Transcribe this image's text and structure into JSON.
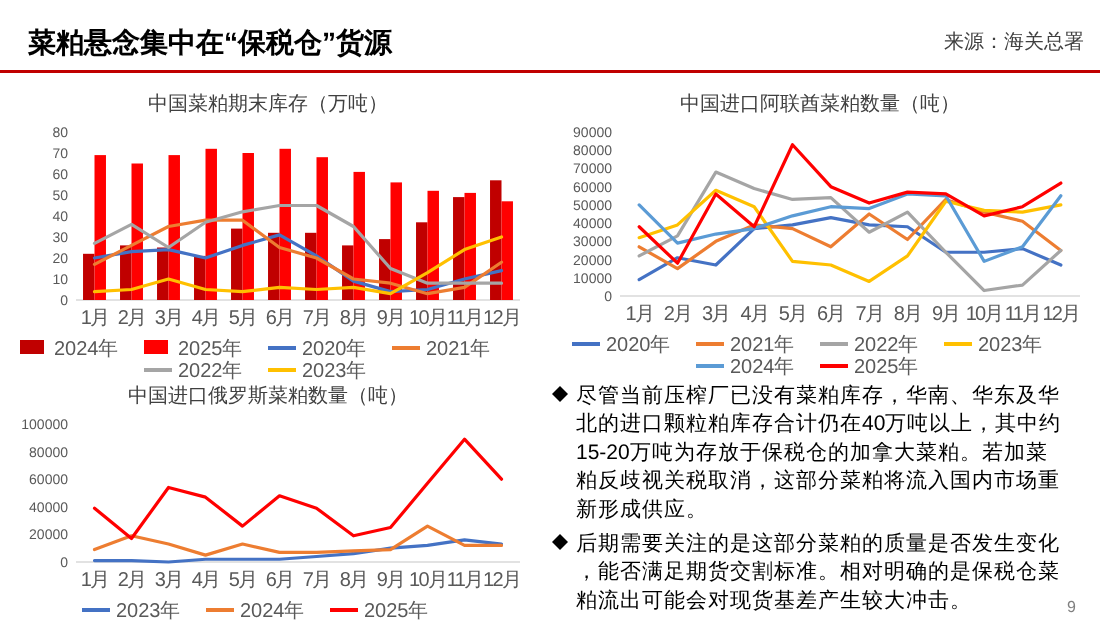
{
  "chart_data": [
    {
      "type": "bar",
      "title": "中国菜粕期末库存（万吨）",
      "categories": [
        "1月",
        "2月",
        "3月",
        "4月",
        "5月",
        "6月",
        "7月",
        "8月",
        "9月",
        "10月",
        "11月",
        "12月"
      ],
      "ylim": [
        0,
        80
      ],
      "yticks": [
        0,
        10,
        20,
        30,
        40,
        50,
        60,
        70,
        80
      ],
      "legend": "bottom",
      "series": [
        {
          "name": "2024年",
          "color": "#c00000",
          "values": [
            22,
            26,
            25,
            21,
            34,
            32,
            32,
            26,
            29,
            37,
            49,
            57
          ]
        },
        {
          "name": "2025年",
          "color": "#ff0000",
          "values": [
            69,
            65,
            69,
            72,
            70,
            72,
            68,
            61,
            56,
            52,
            51,
            47
          ]
        },
        {
          "name": "2020年",
          "type": "line",
          "color": "#4472c4",
          "values": [
            20,
            23,
            24,
            20,
            26,
            31,
            21,
            9,
            4,
            5,
            10,
            14
          ]
        },
        {
          "name": "2021年",
          "type": "line",
          "color": "#ed7d31",
          "values": [
            17,
            26,
            35,
            38,
            38,
            25,
            20,
            10,
            8,
            3,
            6,
            18
          ]
        },
        {
          "name": "2022年",
          "type": "line",
          "color": "#a5a5a5",
          "values": [
            27,
            36,
            25,
            37,
            42,
            45,
            45,
            35,
            15,
            8,
            8,
            8
          ]
        },
        {
          "name": "2023年",
          "type": "line",
          "color": "#ffc000",
          "values": [
            4,
            5,
            10,
            5,
            4,
            6,
            5,
            6,
            3,
            13,
            24,
            30
          ]
        }
      ]
    },
    {
      "type": "line",
      "title": "中国进口阿联酋菜粕数量（吨）",
      "categories": [
        "1月",
        "2月",
        "3月",
        "4月",
        "5月",
        "6月",
        "7月",
        "8月",
        "9月",
        "10月",
        "11月",
        "12月"
      ],
      "ylim": [
        0,
        90000
      ],
      "yticks": [
        0,
        10000,
        20000,
        30000,
        40000,
        50000,
        60000,
        70000,
        80000,
        90000
      ],
      "legend": "bottom",
      "series": [
        {
          "name": "2020年",
          "color": "#4472c4",
          "values": [
            9000,
            21000,
            17000,
            37000,
            39000,
            43000,
            39000,
            38000,
            24000,
            24000,
            26000,
            17000
          ]
        },
        {
          "name": "2021年",
          "color": "#ed7d31",
          "values": [
            27000,
            15000,
            30000,
            39000,
            37000,
            27000,
            45000,
            31000,
            53000,
            46000,
            41000,
            25000
          ]
        },
        {
          "name": "2022年",
          "color": "#a5a5a5",
          "values": [
            22000,
            33000,
            68000,
            59000,
            53000,
            54000,
            35000,
            46000,
            24000,
            3000,
            6000,
            25000
          ]
        },
        {
          "name": "2023年",
          "color": "#ffc000",
          "values": [
            32000,
            39000,
            58000,
            49000,
            19000,
            17000,
            8000,
            22000,
            52000,
            47000,
            46000,
            50000
          ]
        },
        {
          "name": "2024年",
          "color": "#5b9bd5",
          "values": [
            50000,
            29000,
            34000,
            37000,
            44000,
            49000,
            48000,
            56000,
            55000,
            19000,
            27000,
            55000
          ]
        },
        {
          "name": "2025年",
          "color": "#ff0000",
          "values": [
            38000,
            18000,
            56000,
            38000,
            83000,
            60000,
            51000,
            57000,
            56000,
            44000,
            49000,
            62000
          ]
        }
      ]
    },
    {
      "type": "line",
      "title": "中国进口俄罗斯菜粕数量（吨）",
      "categories": [
        "1月",
        "2月",
        "3月",
        "4月",
        "5月",
        "6月",
        "7月",
        "8月",
        "9月",
        "10月",
        "11月",
        "12月"
      ],
      "ylim": [
        0,
        100000
      ],
      "yticks": [
        0,
        20000,
        40000,
        60000,
        80000,
        100000
      ],
      "legend": "bottom",
      "series": [
        {
          "name": "2023年",
          "color": "#4472c4",
          "values": [
            1000,
            1000,
            0,
            2000,
            2000,
            2000,
            4000,
            6000,
            10000,
            12000,
            16000,
            13000
          ]
        },
        {
          "name": "2024年",
          "color": "#ed7d31",
          "values": [
            9000,
            19000,
            13000,
            5000,
            13000,
            7000,
            7000,
            8000,
            9000,
            26000,
            12000,
            12000
          ]
        },
        {
          "name": "2025年",
          "color": "#ff0000",
          "values": [
            39000,
            17000,
            54000,
            47000,
            26000,
            48000,
            39000,
            19000,
            25000,
            57000,
            89000,
            60000
          ]
        }
      ]
    },
    {
      "type": "other",
      "title": "菜粕悬念集中在“保税仓”货源",
      "annotations": [
        "来源：海关总署",
        "尽管当前压榨厂已没有菜粕库存，华南、华东及华北的进口颗粒粕库存合计仍在40万吨以上，其中约15-20万吨为存放于保税仓的加拿大菜粕。若加菜粕反歧视关税取消，这部分菜粕将流入国内市场重新形成供应。",
        "后期需要关注的是这部分菜粕的质量是否发生变化，能否满足期货交割标准。相对明确的是保税仓菜粕流出可能会对现货基差产生较大冲击。",
        "9"
      ]
    }
  ]
}
